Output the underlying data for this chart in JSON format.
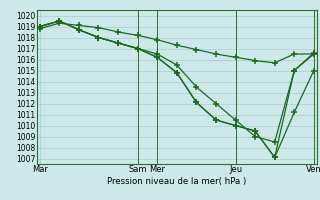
{
  "bg_color": "#cce8e8",
  "grid_color": "#aacece",
  "line_color": "#1a6b1a",
  "vline_color": "#2d6e2d",
  "xlabel": "Pression niveau de la mer( hPa )",
  "ylim": [
    1006.5,
    1020.5
  ],
  "yticks": [
    1007,
    1008,
    1009,
    1010,
    1011,
    1012,
    1013,
    1014,
    1015,
    1016,
    1017,
    1018,
    1019,
    1020
  ],
  "day_labels": [
    "Mar",
    "Sam",
    "Mer",
    "Jeu",
    "Ven"
  ],
  "day_x": [
    0,
    10,
    12,
    20,
    28
  ],
  "vlines": [
    10,
    12,
    20,
    28
  ],
  "xlim": [
    -0.3,
    28.3
  ],
  "line1_x": [
    0,
    2,
    4,
    6,
    8,
    10,
    12,
    14,
    16,
    18,
    20,
    22,
    24,
    26,
    28
  ],
  "line1_y": [
    1018.8,
    1019.3,
    1019.1,
    1018.9,
    1018.5,
    1018.2,
    1017.8,
    1017.3,
    1016.9,
    1016.5,
    1016.2,
    1015.9,
    1015.7,
    1016.5,
    1016.5
  ],
  "line2_x": [
    0,
    2,
    4,
    6,
    8,
    10,
    12,
    14,
    16,
    18,
    20,
    22,
    24,
    26,
    28
  ],
  "line2_y": [
    1019.0,
    1019.5,
    1018.7,
    1018.0,
    1017.5,
    1017.0,
    1016.5,
    1015.5,
    1013.5,
    1012.0,
    1010.5,
    1009.0,
    1008.5,
    1015.0,
    1016.6
  ],
  "line3_x": [
    0,
    2,
    4,
    6,
    8,
    10,
    12,
    14,
    16,
    18,
    20,
    22,
    24,
    26,
    28
  ],
  "line3_y": [
    1019.0,
    1019.5,
    1018.7,
    1018.0,
    1017.5,
    1017.0,
    1016.2,
    1014.8,
    1012.1,
    1010.5,
    1010.0,
    1009.5,
    1007.1,
    1011.2,
    1015.0
  ],
  "line4_x": [
    0,
    2,
    4,
    6,
    8,
    10,
    12,
    14,
    16,
    18,
    20,
    22,
    24,
    26,
    28
  ],
  "line4_y": [
    1019.0,
    1019.5,
    1018.7,
    1018.0,
    1017.5,
    1017.0,
    1016.2,
    1014.8,
    1012.1,
    1010.5,
    1010.0,
    1009.5,
    1007.1,
    1015.0,
    1016.5
  ]
}
